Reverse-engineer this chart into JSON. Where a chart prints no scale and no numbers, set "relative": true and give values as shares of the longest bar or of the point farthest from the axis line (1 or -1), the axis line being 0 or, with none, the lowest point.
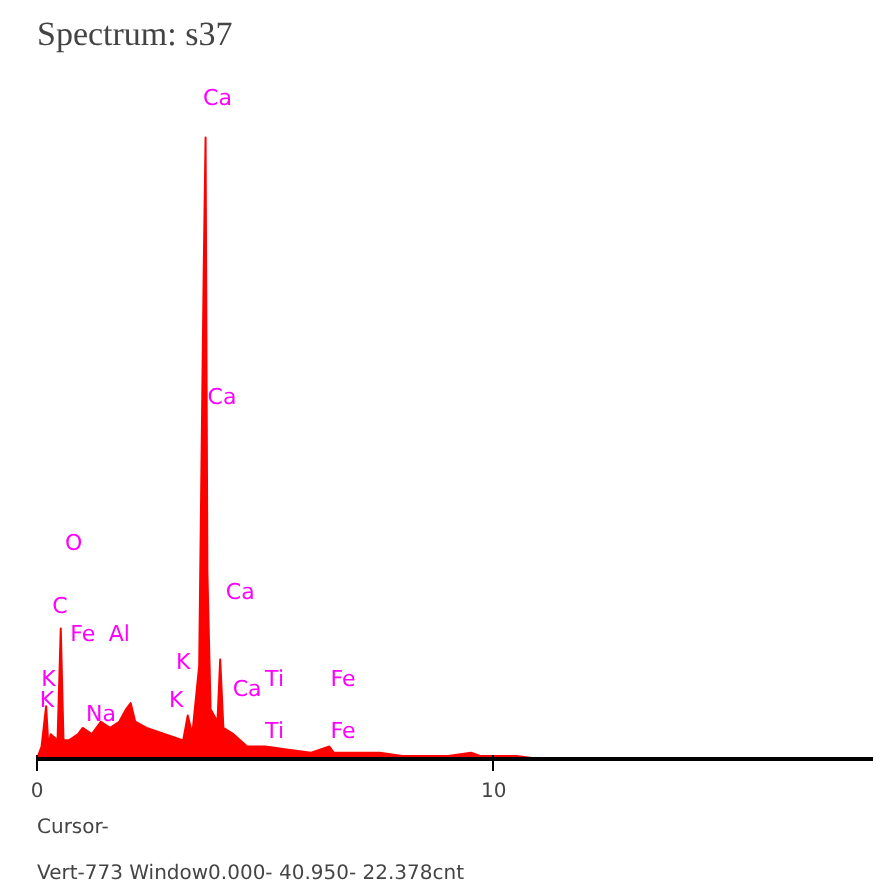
{
  "chart_data": {
    "type": "area",
    "title": "Spectrum: s37",
    "relative": true,
    "color": "#ff0000",
    "x": [
      0,
      0.1,
      0.2,
      0.25,
      0.3,
      0.45,
      0.52,
      0.58,
      0.7,
      0.9,
      1.0,
      1.2,
      1.4,
      1.6,
      1.8,
      1.95,
      2.05,
      2.15,
      2.4,
      2.8,
      3.2,
      3.3,
      3.4,
      3.55,
      3.65,
      3.69,
      3.73,
      3.8,
      3.95,
      4.01,
      4.08,
      4.3,
      4.6,
      5.0,
      5.5,
      6.0,
      6.4,
      6.5,
      7.0,
      7.5,
      8.0,
      9.0,
      9.5,
      9.7,
      10.5,
      11,
      18.3
    ],
    "values": [
      0,
      0.02,
      0.085,
      0.02,
      0.04,
      0.03,
      0.21,
      0.03,
      0.03,
      0.04,
      0.05,
      0.04,
      0.06,
      0.05,
      0.06,
      0.08,
      0.09,
      0.06,
      0.05,
      0.04,
      0.03,
      0.07,
      0.04,
      0.15,
      0.79,
      1.0,
      0.3,
      0.08,
      0.06,
      0.16,
      0.05,
      0.04,
      0.02,
      0.02,
      0.015,
      0.01,
      0.02,
      0.01,
      0.01,
      0.01,
      0.005,
      0.005,
      0.01,
      0.005,
      0.005,
      0,
      0
    ],
    "xlim": [
      0,
      18.3
    ],
    "xticks": [
      0,
      10
    ],
    "grid": false,
    "annotations": [
      "Ca",
      "Ca",
      "Ca",
      "Ca",
      "O",
      "C",
      "Fe",
      "Al",
      "K",
      "K",
      "K",
      "K",
      "Na",
      "Ti",
      "Ti",
      "Fe",
      "Fe",
      "Cursor-",
      "Vert-773          Window0.000- 40.950-   22.378cnt"
    ]
  }
}
